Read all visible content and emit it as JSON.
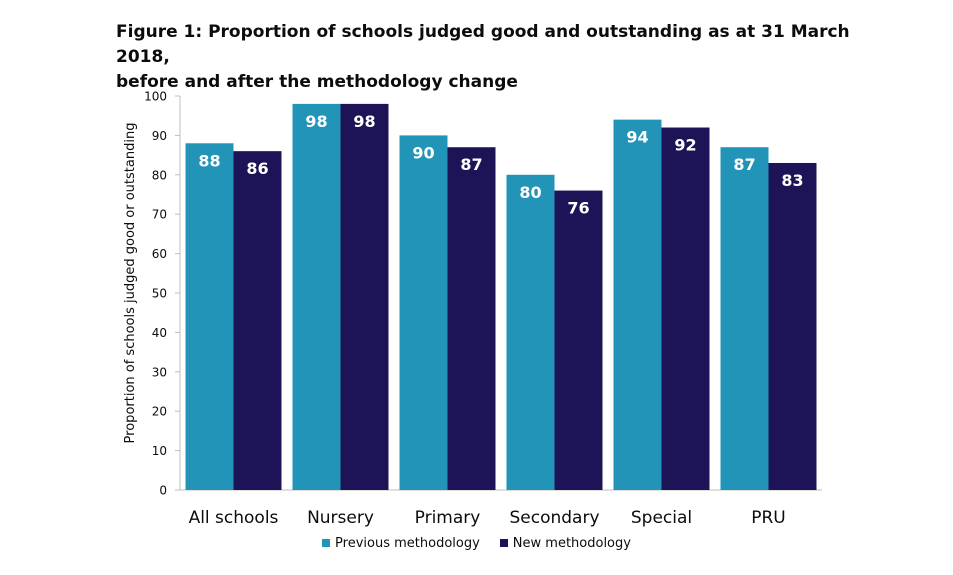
{
  "title_line1": "Figure 1: Proportion of schools judged good and outstanding as at 31 March 2018,",
  "title_line2": "before and after the methodology change",
  "chart_data": {
    "type": "bar",
    "title": "Figure 1: Proportion of schools judged good and outstanding as at 31 March 2018, before and after the methodology change",
    "ylabel": "Proportion of schools judged good or outstanding",
    "xlabel": "",
    "ylim": [
      0,
      100
    ],
    "yticks": [
      0,
      10,
      20,
      30,
      40,
      50,
      60,
      70,
      80,
      90,
      100
    ],
    "grid": false,
    "legend_position": "bottom",
    "categories": [
      "All schools",
      "Nursery",
      "Primary",
      "Secondary",
      "Special",
      "PRU"
    ],
    "series": [
      {
        "name": "Previous methodology",
        "color": "#2294b8",
        "values": [
          88,
          98,
          90,
          80,
          94,
          87
        ]
      },
      {
        "name": "New methodology",
        "color": "#1c1456",
        "values": [
          86,
          98,
          87,
          76,
          92,
          83
        ]
      }
    ],
    "data_label_color": "#ffffff"
  }
}
